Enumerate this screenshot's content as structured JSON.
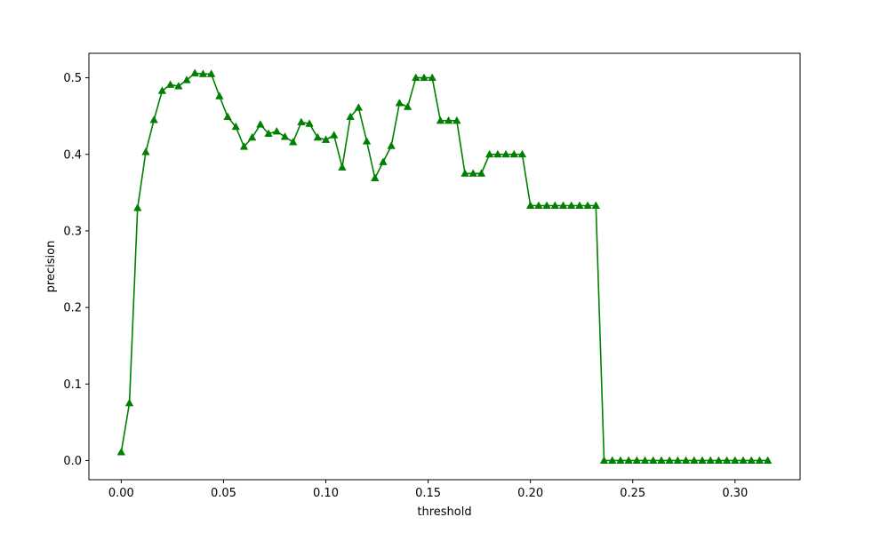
{
  "chart_data": {
    "type": "line",
    "xlabel": "threshold",
    "ylabel": "precision",
    "xlim": [
      -0.0158,
      0.3318
    ],
    "ylim": [
      -0.025,
      0.532
    ],
    "xticks": [
      0.0,
      0.05,
      0.1,
      0.15,
      0.2,
      0.25,
      0.3
    ],
    "xtick_labels": [
      "0.00",
      "0.05",
      "0.10",
      "0.15",
      "0.20",
      "0.25",
      "0.30"
    ],
    "yticks": [
      0.0,
      0.1,
      0.2,
      0.3,
      0.4,
      0.5
    ],
    "ytick_labels": [
      "0.0",
      "0.1",
      "0.2",
      "0.3",
      "0.4",
      "0.5"
    ],
    "grid": false,
    "series": [
      {
        "color": "#008000",
        "marker": "triangle-up",
        "x": [
          0.0,
          0.004,
          0.008,
          0.012,
          0.016,
          0.02,
          0.024,
          0.028,
          0.032,
          0.036,
          0.04,
          0.044,
          0.048,
          0.052,
          0.056,
          0.06,
          0.064,
          0.068,
          0.072,
          0.076,
          0.08,
          0.084,
          0.088,
          0.092,
          0.096,
          0.1,
          0.104,
          0.108,
          0.112,
          0.116,
          0.12,
          0.124,
          0.128,
          0.132,
          0.136,
          0.14,
          0.144,
          0.148,
          0.152,
          0.156,
          0.16,
          0.164,
          0.168,
          0.172,
          0.176,
          0.18,
          0.184,
          0.188,
          0.192,
          0.196,
          0.2,
          0.204,
          0.208,
          0.212,
          0.216,
          0.22,
          0.224,
          0.228,
          0.232,
          0.236,
          0.24,
          0.244,
          0.248,
          0.252,
          0.256,
          0.26,
          0.264,
          0.268,
          0.272,
          0.276,
          0.28,
          0.284,
          0.288,
          0.292,
          0.296,
          0.3,
          0.304,
          0.308,
          0.312,
          0.316
        ],
        "y": [
          0.011,
          0.075,
          0.33,
          0.403,
          0.445,
          0.483,
          0.491,
          0.489,
          0.497,
          0.506,
          0.505,
          0.505,
          0.476,
          0.449,
          0.436,
          0.41,
          0.422,
          0.439,
          0.427,
          0.43,
          0.423,
          0.416,
          0.442,
          0.44,
          0.422,
          0.419,
          0.425,
          0.383,
          0.449,
          0.461,
          0.417,
          0.369,
          0.39,
          0.411,
          0.467,
          0.462,
          0.5,
          0.5,
          0.5,
          0.444,
          0.444,
          0.444,
          0.375,
          0.375,
          0.375,
          0.4,
          0.4,
          0.4,
          0.4,
          0.4,
          0.333,
          0.333,
          0.333,
          0.333,
          0.333,
          0.333,
          0.333,
          0.333,
          0.333,
          0.0,
          0.0,
          0.0,
          0.0,
          0.0,
          0.0,
          0.0,
          0.0,
          0.0,
          0.0,
          0.0,
          0.0,
          0.0,
          0.0,
          0.0,
          0.0,
          0.0,
          0.0,
          0.0,
          0.0,
          0.0
        ]
      }
    ]
  }
}
